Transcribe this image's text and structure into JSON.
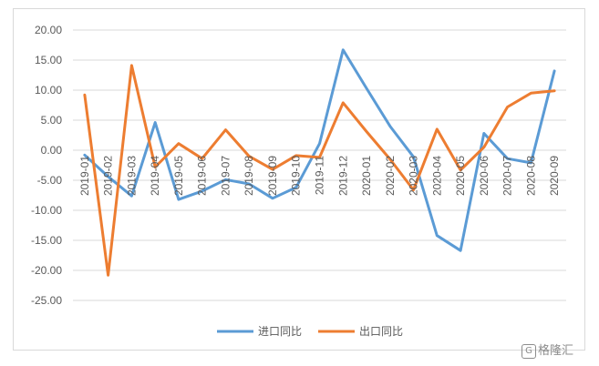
{
  "chart_data": {
    "type": "line",
    "title": "",
    "xlabel": "",
    "ylabel": "",
    "categories": [
      "2019-01",
      "2019-02",
      "2019-03",
      "2019-04",
      "2019-05",
      "2019-06",
      "2019-07",
      "2019-08",
      "2019-09",
      "2019-10",
      "2019-11",
      "2019-12",
      "2020-01",
      "2020-02",
      "2020-03",
      "2020-04",
      "2020-05",
      "2020-06",
      "2020-07",
      "2020-08",
      "2020-09"
    ],
    "ylim": [
      -25,
      20
    ],
    "ytick_labels": [
      "20.00",
      "15.00",
      "10.00",
      "5.00",
      "0.00",
      "-5.00",
      "-10.00",
      "-15.00",
      "-20.00",
      "-25.00"
    ],
    "ytick_values": [
      20,
      15,
      10,
      5,
      0,
      -5,
      -10,
      -15,
      -20,
      -25
    ],
    "grid": true,
    "legend_position": "bottom",
    "series": [
      {
        "name": "进口同比",
        "color": "#5b9bd5",
        "values": [
          -0.8,
          -4.4,
          -7.6,
          4.6,
          -8.2,
          -6.8,
          -4.9,
          -5.6,
          -8.0,
          -6.2,
          1.1,
          16.7,
          10.3,
          4.0,
          -1.1,
          -14.2,
          -16.7,
          2.8,
          -1.4,
          -2.1,
          13.2
        ]
      },
      {
        "name": "出口同比",
        "color": "#ed7d31",
        "values": [
          9.2,
          -20.8,
          14.1,
          -2.8,
          1.1,
          -1.4,
          3.4,
          -1.0,
          -3.2,
          -0.9,
          -1.2,
          7.9,
          3.1,
          -1.5,
          -6.6,
          3.5,
          -3.3,
          0.5,
          7.2,
          9.5,
          9.9
        ]
      }
    ]
  },
  "watermark": {
    "text": "格隆汇",
    "icon": "G-logo-icon"
  }
}
